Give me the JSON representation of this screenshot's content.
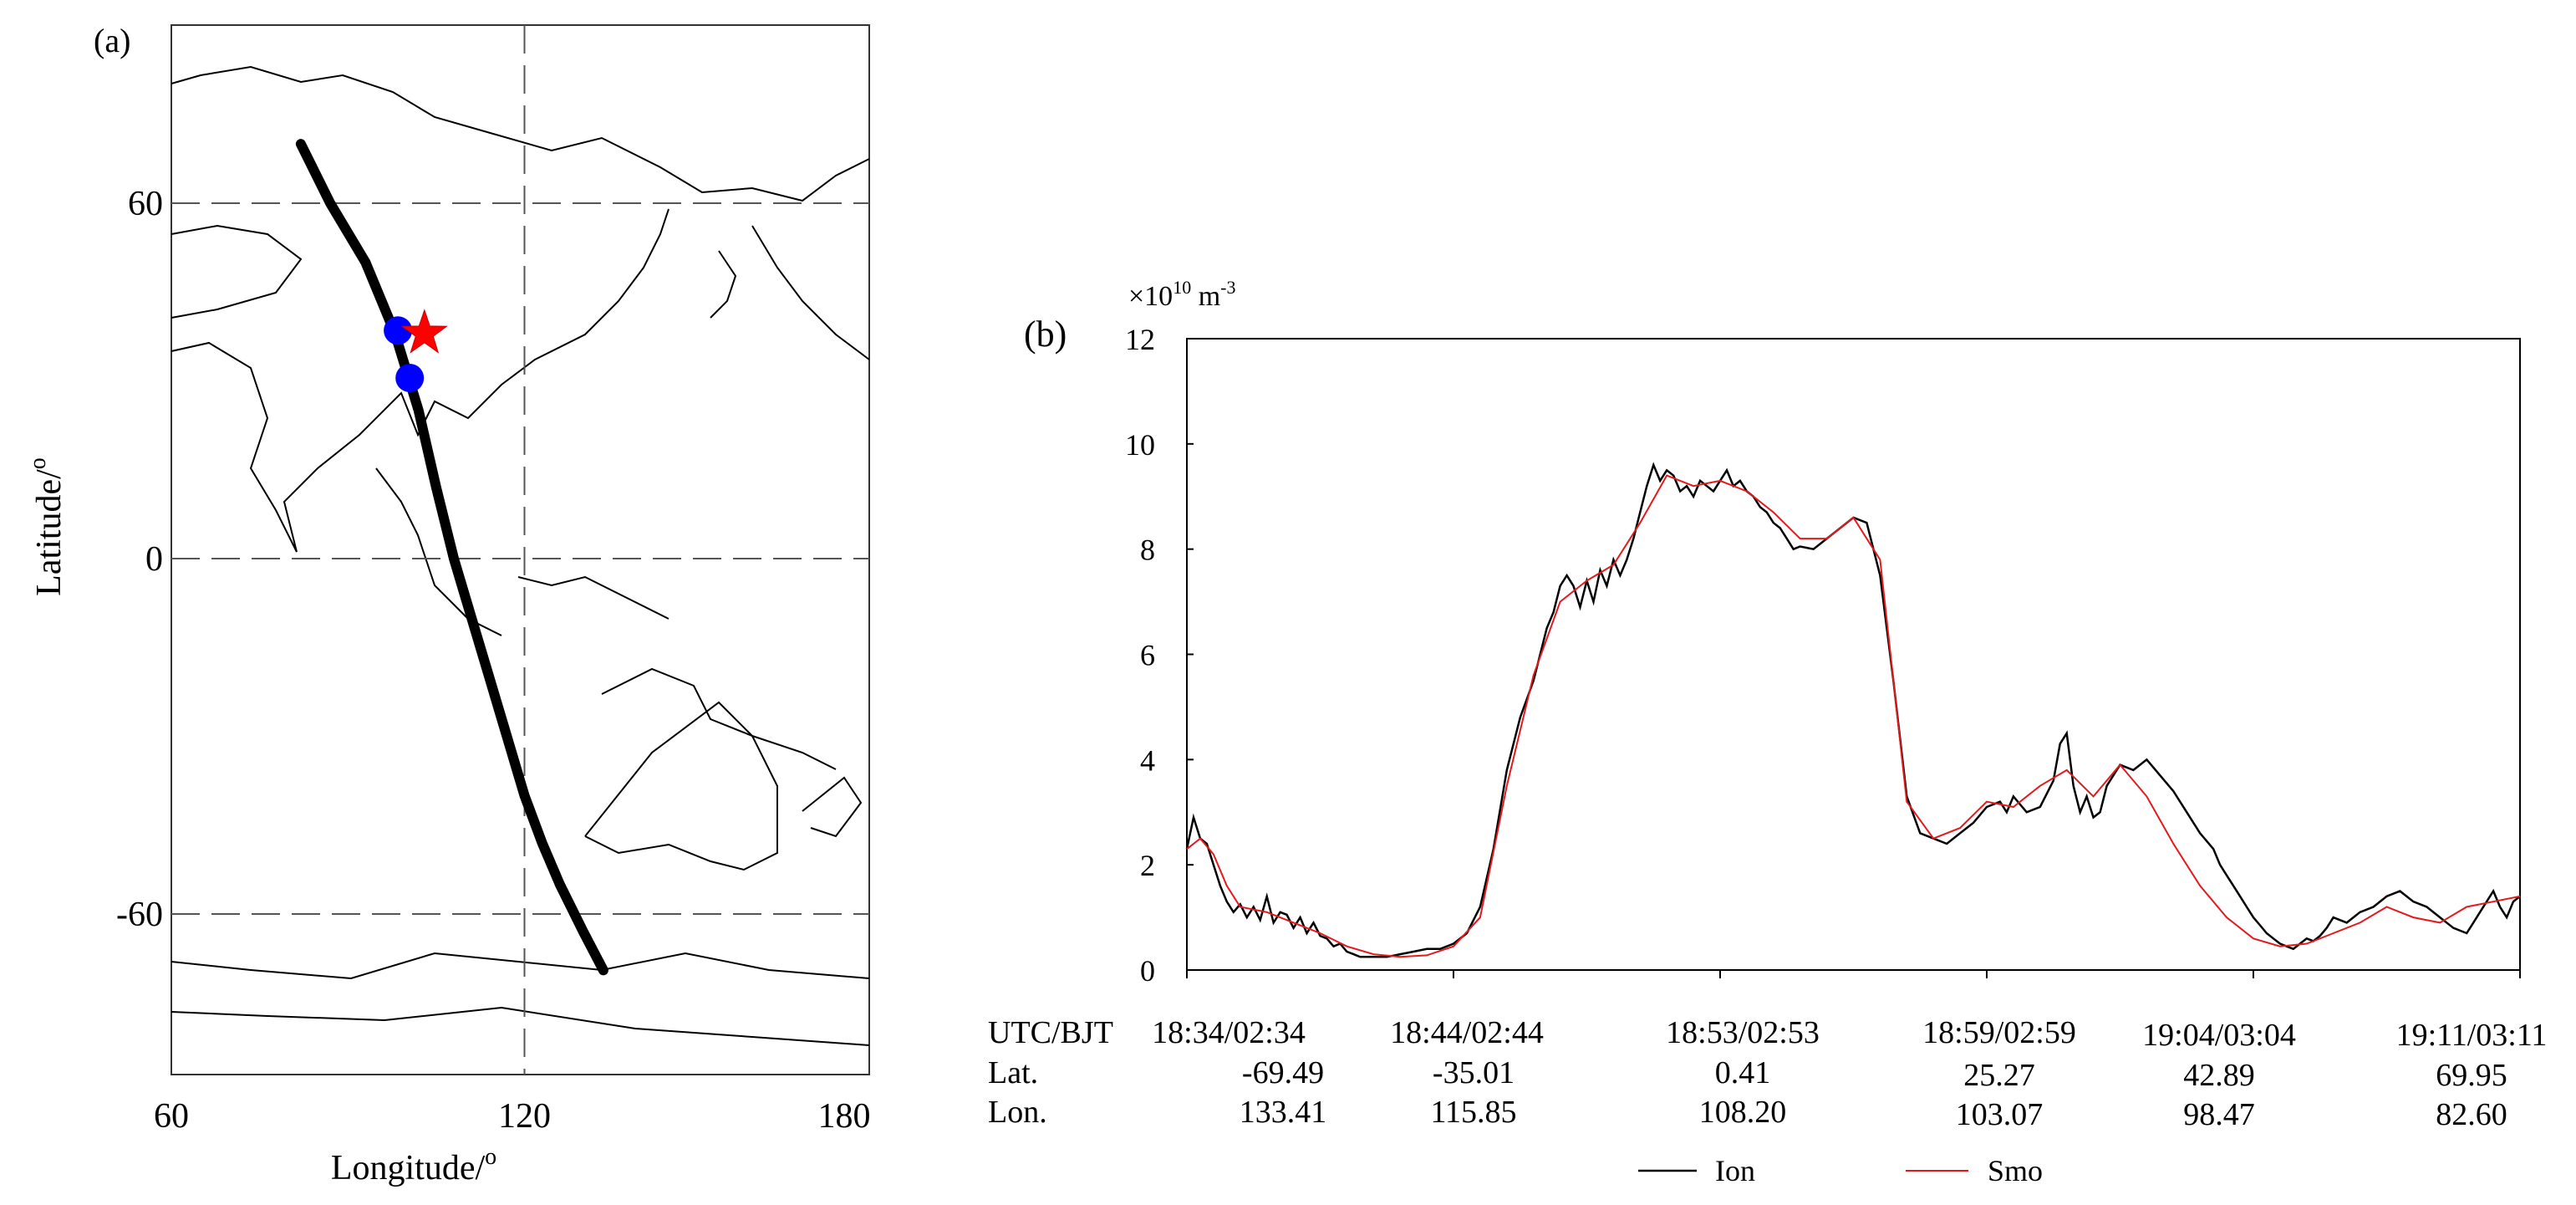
{
  "panel_a": {
    "label": "(a)",
    "xlabel": "Longitude/",
    "xlabel_sup": "o",
    "ylabel": "Latitude/",
    "ylabel_sup": "o",
    "map_region": "Asia-Pacific / Australia / Antarctica coastlines",
    "colors": {
      "track": "#000000",
      "points": "#0000ff",
      "star": "#ff0000",
      "coast": "#000000",
      "grid": "#555555"
    }
  },
  "panel_b": {
    "label": "(b)",
    "unit_prefix": "×10",
    "unit_exp": "10",
    "unit_main": " m",
    "unit_exp2": "-3",
    "table": {
      "row_labels": [
        "UTC/BJT",
        "Lat.",
        "Lon."
      ],
      "times": [
        "18:34/02:34",
        "18:44/02:44",
        "18:53/02:53",
        "18:59/02:59",
        "19:04/03:04",
        "19:11/03:11"
      ],
      "lats": [
        "-69.49",
        "-35.01",
        "0.41",
        "25.27",
        "42.89",
        "69.95"
      ],
      "lons": [
        "133.41",
        "115.85",
        "108.20",
        "103.07",
        "98.47",
        "82.60"
      ]
    },
    "legend": [
      "Ion",
      "Smo"
    ],
    "colors": {
      "Ion": "#000000",
      "Smo": "#e31a1c"
    }
  },
  "chart_data": [
    {
      "type": "line",
      "title": "",
      "xlabel": "Longitude/o",
      "ylabel": "Latitude/o",
      "xlim": [
        60,
        180
      ],
      "ylim": [
        -90,
        90
      ],
      "xticks": [
        60,
        120,
        180
      ],
      "yticks": [
        60,
        0,
        -60
      ],
      "grid": "dashed at 120 lon and 60/0/-60 lat",
      "series": [
        {
          "x": [
            82,
            87,
            93,
            98,
            102,
            105,
            108,
            111,
            114,
            117,
            120,
            123,
            126,
            130,
            133.4
          ],
          "y": [
            70,
            60,
            50,
            38,
            25,
            12,
            0,
            -10,
            -20,
            -30,
            -40,
            -48,
            -55,
            -63,
            -69.5
          ]
        }
      ],
      "points": [
        {
          "lon": 98.5,
          "lat": 38.5
        },
        {
          "lon": 100.5,
          "lat": 30.5
        }
      ],
      "star": {
        "lon": 103,
        "lat": 38
      }
    },
    {
      "type": "line",
      "title": "",
      "xlabel": "",
      "ylabel": "",
      "ylim": [
        0,
        12
      ],
      "yticks": [
        0,
        2,
        4,
        6,
        8,
        10,
        12
      ],
      "x_unit": "fraction of time span 18:34 to 19:11 UTC",
      "grid": false,
      "legend": "bottom",
      "series": [
        {
          "name": "Ion",
          "x": [
            0.0,
            0.005,
            0.01,
            0.015,
            0.02,
            0.025,
            0.03,
            0.035,
            0.04,
            0.045,
            0.05,
            0.055,
            0.06,
            0.065,
            0.07,
            0.075,
            0.08,
            0.085,
            0.09,
            0.095,
            0.1,
            0.105,
            0.11,
            0.115,
            0.12,
            0.125,
            0.13,
            0.14,
            0.15,
            0.16,
            0.17,
            0.18,
            0.19,
            0.2,
            0.21,
            0.22,
            0.23,
            0.24,
            0.25,
            0.26,
            0.265,
            0.27,
            0.275,
            0.28,
            0.285,
            0.29,
            0.295,
            0.3,
            0.305,
            0.31,
            0.315,
            0.32,
            0.325,
            0.33,
            0.335,
            0.34,
            0.345,
            0.35,
            0.355,
            0.36,
            0.365,
            0.37,
            0.375,
            0.38,
            0.385,
            0.39,
            0.395,
            0.4,
            0.405,
            0.41,
            0.415,
            0.42,
            0.425,
            0.43,
            0.435,
            0.44,
            0.445,
            0.45,
            0.455,
            0.46,
            0.47,
            0.48,
            0.49,
            0.5,
            0.51,
            0.52,
            0.53,
            0.54,
            0.55,
            0.56,
            0.57,
            0.58,
            0.59,
            0.6,
            0.61,
            0.615,
            0.62,
            0.63,
            0.64,
            0.65,
            0.655,
            0.66,
            0.665,
            0.67,
            0.675,
            0.68,
            0.685,
            0.69,
            0.7,
            0.71,
            0.72,
            0.73,
            0.74,
            0.75,
            0.76,
            0.77,
            0.775,
            0.78,
            0.785,
            0.79,
            0.795,
            0.8,
            0.805,
            0.81,
            0.815,
            0.82,
            0.825,
            0.83,
            0.835,
            0.84,
            0.845,
            0.85,
            0.855,
            0.86,
            0.87,
            0.88,
            0.89,
            0.9,
            0.91,
            0.92,
            0.93,
            0.94,
            0.95,
            0.96,
            0.965,
            0.97,
            0.975,
            0.98,
            0.985,
            0.99,
            0.995,
            1.0
          ],
          "y": [
            2.3,
            2.9,
            2.5,
            2.4,
            2.0,
            1.6,
            1.3,
            1.1,
            1.25,
            1.0,
            1.2,
            0.95,
            1.4,
            0.9,
            1.1,
            1.05,
            0.8,
            1.0,
            0.7,
            0.9,
            0.65,
            0.6,
            0.45,
            0.5,
            0.35,
            0.3,
            0.25,
            0.25,
            0.25,
            0.3,
            0.35,
            0.4,
            0.4,
            0.5,
            0.7,
            1.2,
            2.3,
            3.8,
            4.8,
            5.5,
            6.0,
            6.5,
            6.8,
            7.3,
            7.5,
            7.3,
            6.9,
            7.4,
            7.0,
            7.6,
            7.3,
            7.8,
            7.5,
            7.8,
            8.2,
            8.7,
            9.2,
            9.6,
            9.3,
            9.5,
            9.4,
            9.1,
            9.2,
            9.0,
            9.3,
            9.2,
            9.1,
            9.3,
            9.5,
            9.2,
            9.3,
            9.1,
            9.0,
            8.8,
            8.7,
            8.5,
            8.4,
            8.2,
            8.0,
            8.05,
            8.0,
            8.2,
            8.4,
            8.6,
            8.5,
            7.5,
            5.5,
            3.3,
            2.6,
            2.5,
            2.4,
            2.6,
            2.8,
            3.1,
            3.2,
            3.0,
            3.3,
            3.0,
            3.1,
            3.6,
            4.3,
            4.5,
            3.5,
            3.0,
            3.3,
            2.9,
            3.0,
            3.5,
            3.9,
            3.8,
            4.0,
            3.7,
            3.4,
            3.0,
            2.6,
            2.3,
            2.0,
            1.8,
            1.6,
            1.4,
            1.2,
            1.0,
            0.85,
            0.7,
            0.6,
            0.5,
            0.45,
            0.4,
            0.5,
            0.6,
            0.55,
            0.65,
            0.8,
            1.0,
            0.9,
            1.1,
            1.2,
            1.4,
            1.5,
            1.3,
            1.2,
            1.0,
            0.8,
            0.7,
            0.9,
            1.1,
            1.3,
            1.5,
            1.2,
            1.0,
            1.3,
            1.4
          ]
        },
        {
          "name": "Smo",
          "x": [
            0.0,
            0.01,
            0.02,
            0.03,
            0.04,
            0.06,
            0.08,
            0.1,
            0.12,
            0.14,
            0.16,
            0.18,
            0.2,
            0.22,
            0.24,
            0.26,
            0.28,
            0.3,
            0.32,
            0.34,
            0.36,
            0.38,
            0.4,
            0.42,
            0.44,
            0.46,
            0.48,
            0.5,
            0.52,
            0.54,
            0.56,
            0.58,
            0.6,
            0.62,
            0.64,
            0.66,
            0.68,
            0.7,
            0.72,
            0.74,
            0.76,
            0.78,
            0.8,
            0.82,
            0.84,
            0.86,
            0.88,
            0.9,
            0.92,
            0.94,
            0.96,
            0.98,
            1.0
          ],
          "y": [
            2.3,
            2.5,
            2.2,
            1.6,
            1.2,
            1.1,
            0.9,
            0.7,
            0.45,
            0.3,
            0.25,
            0.28,
            0.45,
            1.0,
            3.5,
            5.6,
            7.0,
            7.4,
            7.7,
            8.5,
            9.4,
            9.2,
            9.3,
            9.1,
            8.7,
            8.2,
            8.2,
            8.6,
            7.8,
            3.2,
            2.5,
            2.7,
            3.2,
            3.1,
            3.5,
            3.8,
            3.3,
            3.9,
            3.3,
            2.4,
            1.6,
            1.0,
            0.6,
            0.45,
            0.5,
            0.7,
            0.9,
            1.2,
            1.0,
            0.9,
            1.2,
            1.3,
            1.4
          ]
        }
      ]
    }
  ]
}
